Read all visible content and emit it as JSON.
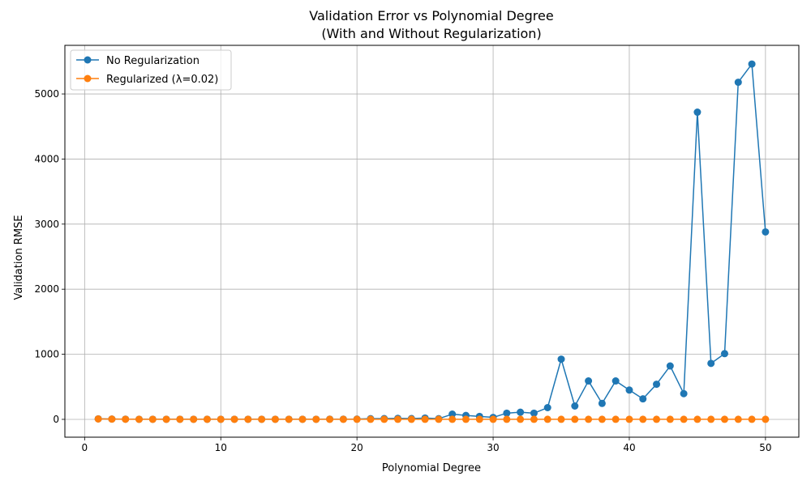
{
  "chart_data": {
    "type": "line",
    "title_line1": "Validation Error vs Polynomial Degree",
    "title_line2": "(With and Without Regularization)",
    "xlabel": "Polynomial Degree",
    "ylabel": "Validation RMSE",
    "xlim": [
      -1.45,
      52.45
    ],
    "ylim": [
      -274,
      5747
    ],
    "xticks": [
      0,
      10,
      20,
      30,
      40,
      50
    ],
    "yticks": [
      0,
      1000,
      2000,
      3000,
      4000,
      5000
    ],
    "grid": true,
    "legend_position": "upper-left",
    "x": [
      1,
      2,
      3,
      4,
      5,
      6,
      7,
      8,
      9,
      10,
      11,
      12,
      13,
      14,
      15,
      16,
      17,
      18,
      19,
      20,
      21,
      22,
      23,
      24,
      25,
      26,
      27,
      28,
      29,
      30,
      31,
      32,
      33,
      34,
      35,
      36,
      37,
      38,
      39,
      40,
      41,
      42,
      43,
      44,
      45,
      46,
      47,
      48,
      49,
      50
    ],
    "series": [
      {
        "name": "No Regularization",
        "color": "#1f77b4",
        "values": [
          8,
          5,
          3,
          2,
          2,
          2,
          2,
          2,
          2,
          2,
          2,
          2,
          2,
          2,
          2,
          2,
          2,
          3,
          3,
          4,
          10,
          12,
          15,
          12,
          20,
          10,
          80,
          60,
          45,
          30,
          95,
          110,
          95,
          180,
          925,
          205,
          590,
          245,
          590,
          450,
          315,
          540,
          820,
          395,
          4720,
          860,
          1010,
          5180,
          5460,
          2880
        ]
      },
      {
        "name": "Regularized (λ=0.02)",
        "color": "#ff7f0e",
        "values": [
          6,
          4,
          2,
          1,
          1,
          1,
          1,
          1,
          1,
          1,
          1,
          1,
          1,
          1,
          1,
          1,
          1,
          1,
          1,
          1,
          1,
          1,
          1,
          1,
          1,
          1,
          1,
          1,
          1,
          1,
          1,
          1,
          1,
          1,
          1,
          1,
          1,
          1,
          1,
          1,
          1,
          1,
          1,
          1,
          1,
          1,
          1,
          1,
          1,
          1
        ]
      }
    ]
  }
}
